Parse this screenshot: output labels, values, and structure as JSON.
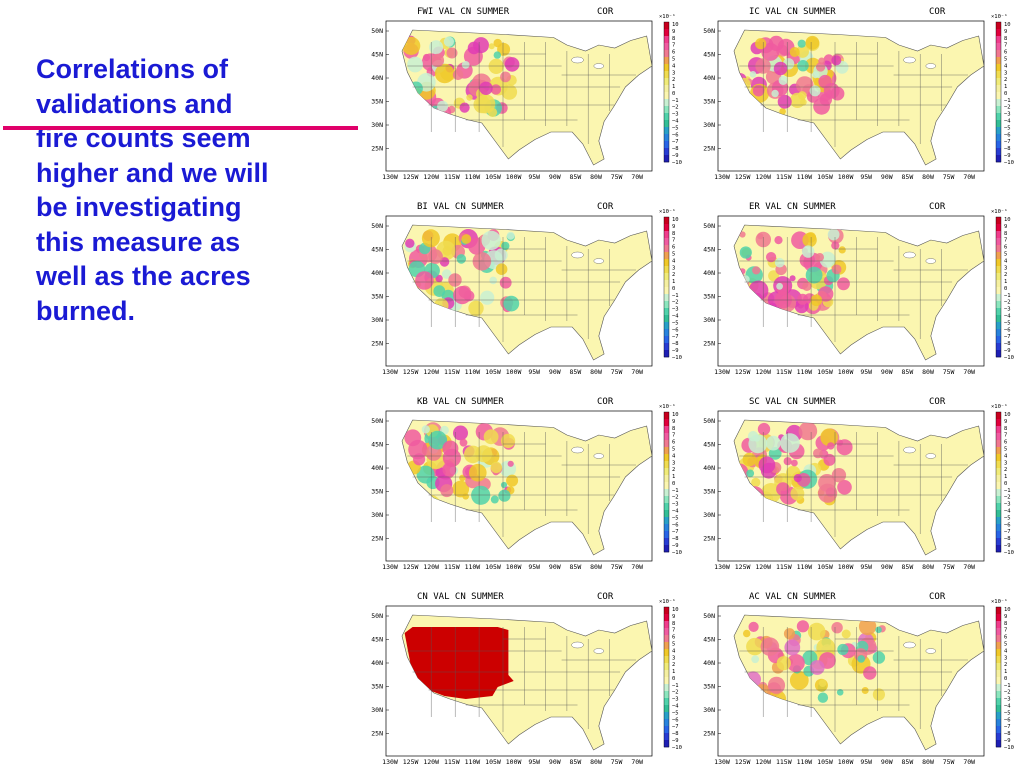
{
  "slide": {
    "lines": [
      "Correlations of",
      "validations and",
      "fire counts seem",
      "higher and we will",
      "be investigating",
      "this measure as",
      "well as the acres",
      "burned."
    ],
    "text_color": "#1a1ad4",
    "accent_line_color": "#e0006a"
  },
  "panels": [
    {
      "title": "FWI  VAL CN SUMMER",
      "stat": "COR",
      "pattern": "mixed"
    },
    {
      "title": "IC  VAL CN SUMMER",
      "stat": "COR",
      "pattern": "mixed"
    },
    {
      "title": "BI  VAL CN SUMMER",
      "stat": "COR",
      "pattern": "mixed"
    },
    {
      "title": "ER  VAL CN SUMMER",
      "stat": "COR",
      "pattern": "mixed"
    },
    {
      "title": "KB  VAL CN SUMMER",
      "stat": "COR",
      "pattern": "mixed"
    },
    {
      "title": "SC  VAL CN SUMMER",
      "stat": "COR",
      "pattern": "mixed"
    },
    {
      "title": "CN VAL CN SUMMER",
      "stat": "COR",
      "pattern": "solid"
    },
    {
      "title": "AC VAL CN SUMMER",
      "stat": "COR",
      "pattern": "ac"
    }
  ],
  "map": {
    "lat_labels": [
      "50N",
      "45N",
      "40N",
      "35N",
      "30N",
      "25N"
    ],
    "lon_labels": [
      "130W",
      "125W",
      "120W",
      "115W",
      "110W",
      "105W",
      "100W",
      "95W",
      "90W",
      "85W",
      "80W",
      "75W",
      "70W"
    ],
    "land_color": "#fbf6b0",
    "ocean_color": "#ffffff"
  },
  "colorbar": {
    "scale_label": "×10⁻¹",
    "ticks": [
      "10",
      "9",
      "8",
      "7",
      "6",
      "5",
      "4",
      "3",
      "2",
      "1",
      "0",
      "−1",
      "−2",
      "−3",
      "−4",
      "−5",
      "−6",
      "−7",
      "−8",
      "−9",
      "−10"
    ],
    "colors": [
      "#c8001e",
      "#e0003c",
      "#f03c8c",
      "#f05aa0",
      "#f07890",
      "#f0a050",
      "#f0c828",
      "#f0dc50",
      "#f0eb78",
      "#f5f0a0",
      "#fbf6b0",
      "#c8f0d2",
      "#8ce6be",
      "#50d2aa",
      "#32be96",
      "#28a0c8",
      "#2882dc",
      "#2864e6",
      "#283cd2",
      "#1e1eb4"
    ]
  }
}
